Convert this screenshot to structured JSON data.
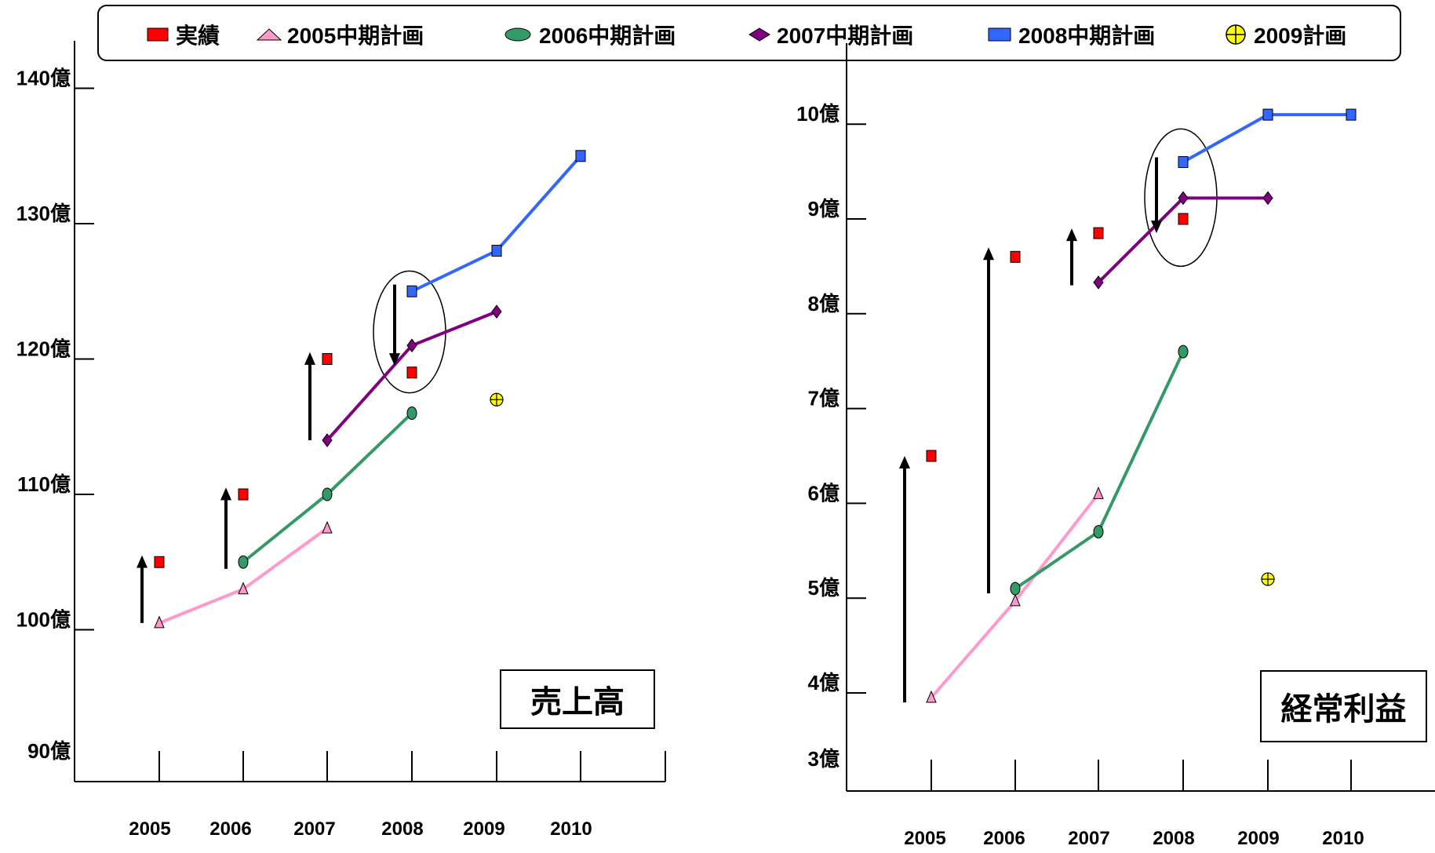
{
  "legend": [
    {
      "label": "実績",
      "marker": "square",
      "color": "#ff0000"
    },
    {
      "label": "2005中期計画",
      "marker": "triangle",
      "color": "#ff99cc"
    },
    {
      "label": "2006中期計画",
      "marker": "ellipse",
      "color": "#339966"
    },
    {
      "label": "2007中期計画",
      "marker": "diamond",
      "color": "#800080"
    },
    {
      "label": "2008中期計画",
      "marker": "square",
      "color": "#3366ff"
    },
    {
      "label": "2009計画",
      "marker": "circle-plus",
      "color": "#ffff00"
    }
  ],
  "chart_data": [
    {
      "type": "line",
      "title": "売上高",
      "categories": [
        "2005",
        "2006",
        "2007",
        "2008",
        "2009",
        "2010"
      ],
      "y_ticks": [
        "90億",
        "100億",
        "110億",
        "120億",
        "130億",
        "140億"
      ],
      "ylim": [
        90,
        140
      ],
      "series": [
        {
          "name": "実績",
          "marker": "square",
          "color": "#ff0000",
          "line": false,
          "points": [
            [
              "2005",
              105
            ],
            [
              "2006",
              110
            ],
            [
              "2007",
              120
            ],
            [
              "2008",
              119
            ]
          ]
        },
        {
          "name": "2005中期計画",
          "marker": "triangle",
          "color": "#ff99cc",
          "line": true,
          "points": [
            [
              "2005",
              100.5
            ],
            [
              "2006",
              103
            ],
            [
              "2007",
              107.5
            ]
          ]
        },
        {
          "name": "2006中期計画",
          "marker": "ellipse",
          "color": "#339966",
          "line": true,
          "points": [
            [
              "2006",
              105
            ],
            [
              "2007",
              110
            ],
            [
              "2008",
              116
            ]
          ]
        },
        {
          "name": "2007中期計画",
          "marker": "diamond",
          "color": "#800080",
          "line": true,
          "points": [
            [
              "2007",
              114
            ],
            [
              "2008",
              121
            ],
            [
              "2009",
              123.5
            ]
          ]
        },
        {
          "name": "2008中期計画",
          "marker": "square",
          "color": "#3366ff",
          "line": true,
          "points": [
            [
              "2008",
              125
            ],
            [
              "2009",
              128
            ],
            [
              "2010",
              135
            ]
          ]
        },
        {
          "name": "2009計画",
          "marker": "circle-plus",
          "color": "#ffff00",
          "line": false,
          "points": [
            [
              "2009",
              117
            ]
          ]
        }
      ],
      "arrows": [
        {
          "category": "2005",
          "from": 100.5,
          "to": 105.5
        },
        {
          "category": "2006",
          "from": 104.5,
          "to": 110.5
        },
        {
          "category": "2007",
          "from": 114,
          "to": 120.5
        },
        {
          "category": "2008",
          "from": 125.5,
          "to": 119.5
        }
      ],
      "highlight": {
        "category": "2008",
        "y_from": 117.5,
        "y_to": 126.5
      }
    },
    {
      "type": "line",
      "title": "経常利益",
      "categories": [
        "2005",
        "2006",
        "2007",
        "2008",
        "2009",
        "2010"
      ],
      "y_ticks": [
        "3億",
        "4億",
        "5億",
        "6億",
        "7億",
        "8億",
        "9億",
        "10億"
      ],
      "ylim": [
        3,
        10
      ],
      "series": [
        {
          "name": "実績",
          "marker": "square",
          "color": "#ff0000",
          "line": false,
          "points": [
            [
              "2005",
              6.5
            ],
            [
              "2006",
              8.6
            ],
            [
              "2007",
              8.85
            ],
            [
              "2008",
              9.0
            ]
          ]
        },
        {
          "name": "2005中期計画",
          "marker": "triangle",
          "color": "#ff99cc",
          "line": true,
          "points": [
            [
              "2005",
              3.95
            ],
            [
              "2006",
              4.97
            ],
            [
              "2007",
              6.1
            ]
          ]
        },
        {
          "name": "2006中期計画",
          "marker": "ellipse",
          "color": "#339966",
          "line": true,
          "points": [
            [
              "2006",
              5.1
            ],
            [
              "2007",
              5.7
            ],
            [
              "2008",
              7.6
            ]
          ]
        },
        {
          "name": "2007中期計画",
          "marker": "diamond",
          "color": "#800080",
          "line": true,
          "points": [
            [
              "2007",
              8.33
            ],
            [
              "2008",
              9.22
            ],
            [
              "2009",
              9.22
            ]
          ]
        },
        {
          "name": "2008中期計画",
          "marker": "square",
          "color": "#3366ff",
          "line": true,
          "points": [
            [
              "2008",
              9.6
            ],
            [
              "2009",
              10.1
            ],
            [
              "2010",
              10.1
            ]
          ]
        },
        {
          "name": "2009計画",
          "marker": "circle-plus",
          "color": "#ffff00",
          "line": false,
          "points": [
            [
              "2009",
              5.2
            ]
          ]
        }
      ],
      "arrows": [
        {
          "category": "2005",
          "from": 3.9,
          "to": 6.5
        },
        {
          "category": "2006",
          "from": 5.05,
          "to": 8.7
        },
        {
          "category": "2007",
          "from": 8.3,
          "to": 8.9
        },
        {
          "category": "2008",
          "from": 9.65,
          "to": 8.85
        }
      ],
      "highlight": {
        "category": "2008",
        "y_from": 8.5,
        "y_to": 9.95
      }
    }
  ]
}
